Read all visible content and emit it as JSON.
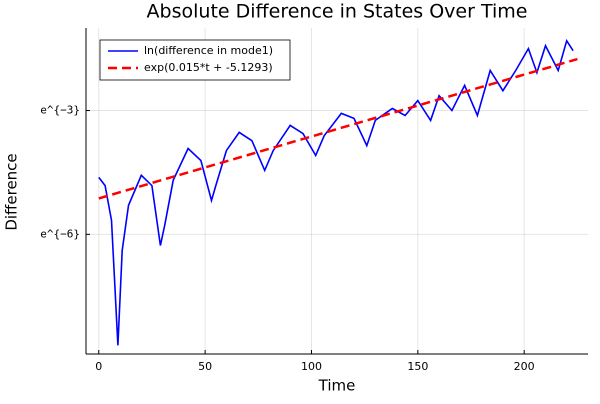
{
  "chart_data": {
    "type": "line",
    "title": "Absolute Difference in States Over Time",
    "x_label": "Time",
    "y_label": "Difference",
    "xlim": [
      -6,
      230
    ],
    "xticks": [
      0,
      50,
      100,
      150,
      200
    ],
    "ylim": [
      -8.9,
      -1.0
    ],
    "yticks": [
      {
        "value": -6,
        "label": "e^{−6}"
      },
      {
        "value": -3,
        "label": "e^{−3}"
      }
    ],
    "grid": true,
    "legend": "top-left",
    "series": [
      {
        "name": "ln(difference in mode1)",
        "color": "#0000ff",
        "style": "solid",
        "x": [
          0,
          3,
          6,
          9,
          11,
          14,
          20,
          25,
          29,
          31,
          35,
          42,
          48,
          53,
          55,
          60,
          66,
          72,
          78,
          82,
          90,
          96,
          102,
          106,
          114,
          120,
          126,
          130,
          138,
          144,
          150,
          156,
          160,
          166,
          172,
          178,
          184,
          190,
          196,
          202,
          206,
          210,
          216,
          220,
          223
        ],
        "values": [
          -4.62,
          -4.82,
          -5.66,
          -8.69,
          -6.39,
          -5.3,
          -4.57,
          -4.82,
          -6.27,
          -5.78,
          -4.69,
          -3.92,
          -4.21,
          -5.18,
          -4.82,
          -3.97,
          -3.53,
          -3.73,
          -4.45,
          -3.97,
          -3.36,
          -3.56,
          -4.09,
          -3.61,
          -3.07,
          -3.19,
          -3.85,
          -3.24,
          -2.95,
          -3.12,
          -2.76,
          -3.24,
          -2.64,
          -3.0,
          -2.39,
          -3.12,
          -2.03,
          -2.52,
          -2.03,
          -1.5,
          -2.08,
          -1.43,
          -2.03,
          -1.31,
          -1.55
        ]
      },
      {
        "name": "exp(0.015*t + -5.1293)",
        "color": "#ff0000",
        "style": "dashed",
        "x": [
          0,
          225
        ],
        "values": [
          -5.1293,
          -1.7543
        ]
      }
    ]
  }
}
